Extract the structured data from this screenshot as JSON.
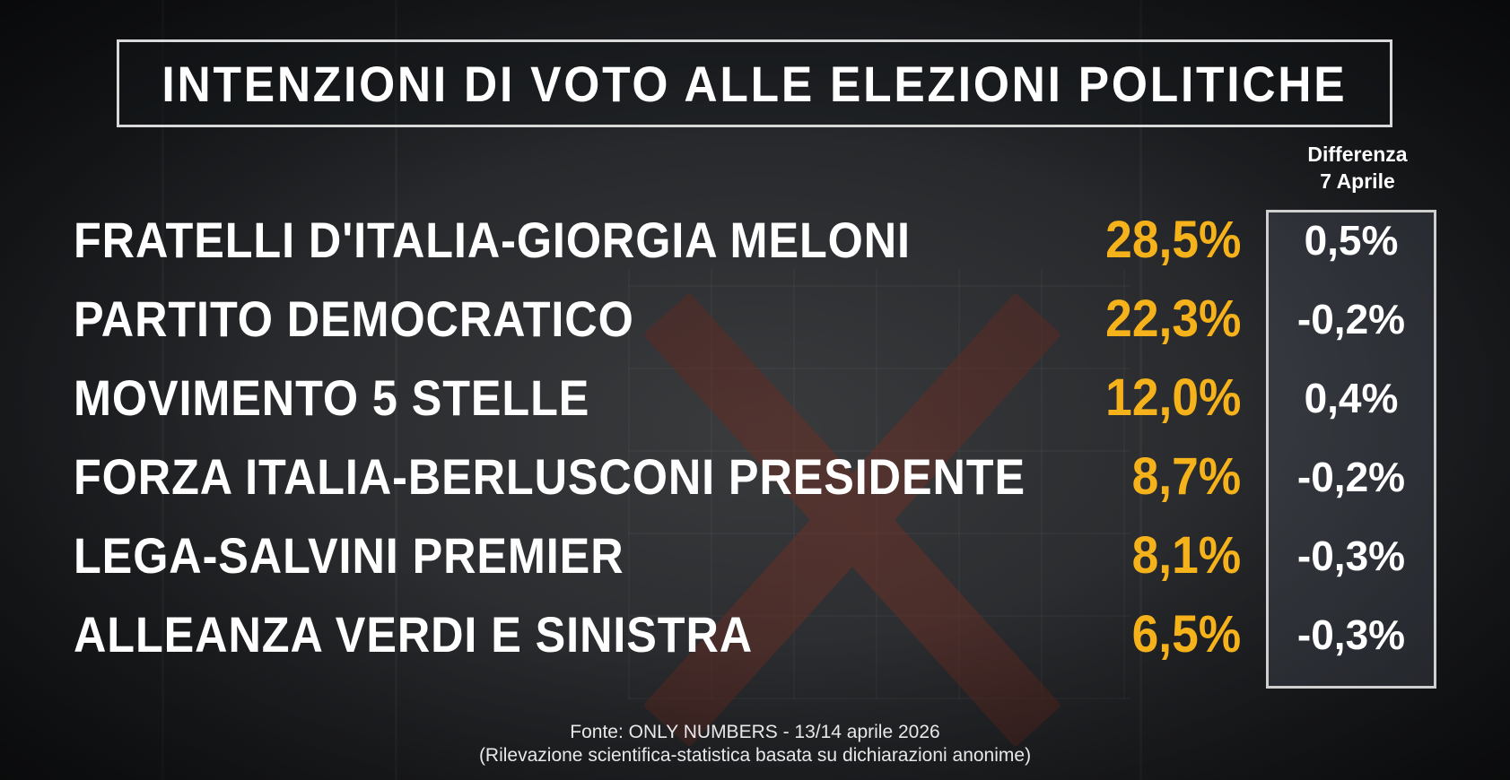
{
  "title": "INTENZIONI DI VOTO ALLE ELEZIONI POLITICHE",
  "diff_header": {
    "line1": "Differenza",
    "line2": "7 Aprile"
  },
  "colors": {
    "value": "#f5b21b",
    "text": "#ffffff",
    "background": "#2a2c2f"
  },
  "chart_data": {
    "type": "table",
    "title": "INTENZIONI DI VOTO ALLE ELEZIONI POLITICHE",
    "columns": [
      "",
      "",
      "Differenza 7 Aprile"
    ],
    "rows": [
      {
        "party": "FRATELLI D'ITALIA-GIORGIA MELONI",
        "value": "28,5%",
        "diff": "0,5%"
      },
      {
        "party": "PARTITO DEMOCRATICO",
        "value": "22,3%",
        "diff": "-0,2%"
      },
      {
        "party": "MOVIMENTO 5 STELLE",
        "value": "12,0%",
        "diff": "0,4%"
      },
      {
        "party": "FORZA ITALIA-BERLUSCONI PRESIDENTE",
        "value": "8,7%",
        "diff": "-0,2%"
      },
      {
        "party": "LEGA-SALVINI PREMIER",
        "value": "8,1%",
        "diff": "-0,3%"
      },
      {
        "party": "ALLEANZA VERDI E SINISTRA",
        "value": "6,5%",
        "diff": "-0,3%"
      }
    ]
  },
  "source": {
    "line1": "Fonte: ONLY NUMBERS - 13/14 aprile 2026",
    "line2": "(Rilevazione scientifica-statistica basata su dichiarazioni anonime)"
  }
}
